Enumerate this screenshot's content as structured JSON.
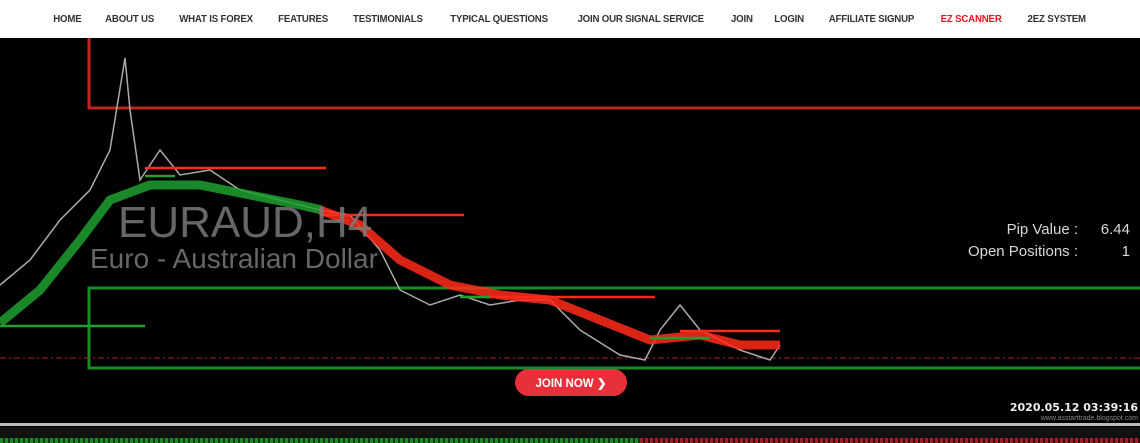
{
  "nav": {
    "items": [
      {
        "label": "HOME"
      },
      {
        "label": "ABOUT US"
      },
      {
        "label": "WHAT IS FOREX"
      },
      {
        "label": "FEATURES"
      },
      {
        "label": "TESTIMONIALS"
      },
      {
        "label": "TYPICAL QUESTIONS"
      },
      {
        "label": "JOIN OUR SIGNAL SERVICE"
      },
      {
        "label": "JOIN"
      },
      {
        "label": "LOGIN"
      },
      {
        "label": "AFFILIATE SIGNUP"
      },
      {
        "label": "EZ SCANNER",
        "active": true
      },
      {
        "label": "2EZ SYSTEM"
      }
    ],
    "active_color": "#e8141c"
  },
  "chart": {
    "symbol": "EURAUD,H4",
    "description": "Euro - Australian Dollar",
    "pip_value_label": "Pip Value :",
    "pip_value": "6.44",
    "open_positions_label": "Open Positions :",
    "open_positions": "1",
    "timestamp": "2020.05.12 03:39:16",
    "watermark": "www.asstarttrade.blogspot.com",
    "colors": {
      "bull": "#1fa02f",
      "bear": "#ff2a1a",
      "price": "#aaaaaa"
    }
  },
  "cta": {
    "join_label": "JOIN NOW ❯",
    "color": "#e8303a"
  }
}
